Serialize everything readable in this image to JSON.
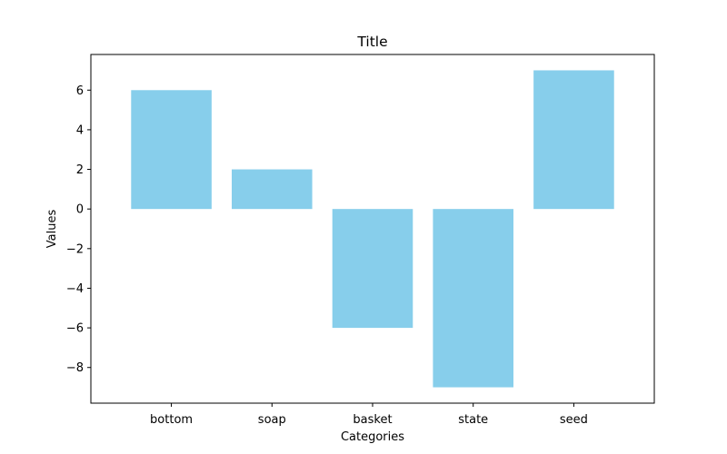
{
  "chart_data": {
    "type": "bar",
    "title": "Title",
    "xlabel": "Categories",
    "ylabel": "Values",
    "categories": [
      "bottom",
      "soap",
      "basket",
      "state",
      "seed"
    ],
    "values": [
      6,
      2,
      -6,
      -9,
      7
    ],
    "ylim": [
      -9.8,
      7.8
    ],
    "yticks": [
      -8,
      -6,
      -4,
      -2,
      0,
      2,
      4,
      6
    ],
    "ytick_labels": [
      "−8",
      "−6",
      "−4",
      "−2",
      "0",
      "2",
      "4",
      "6"
    ],
    "bar_color": "#87ceeb",
    "grid": false,
    "legend": "none"
  }
}
